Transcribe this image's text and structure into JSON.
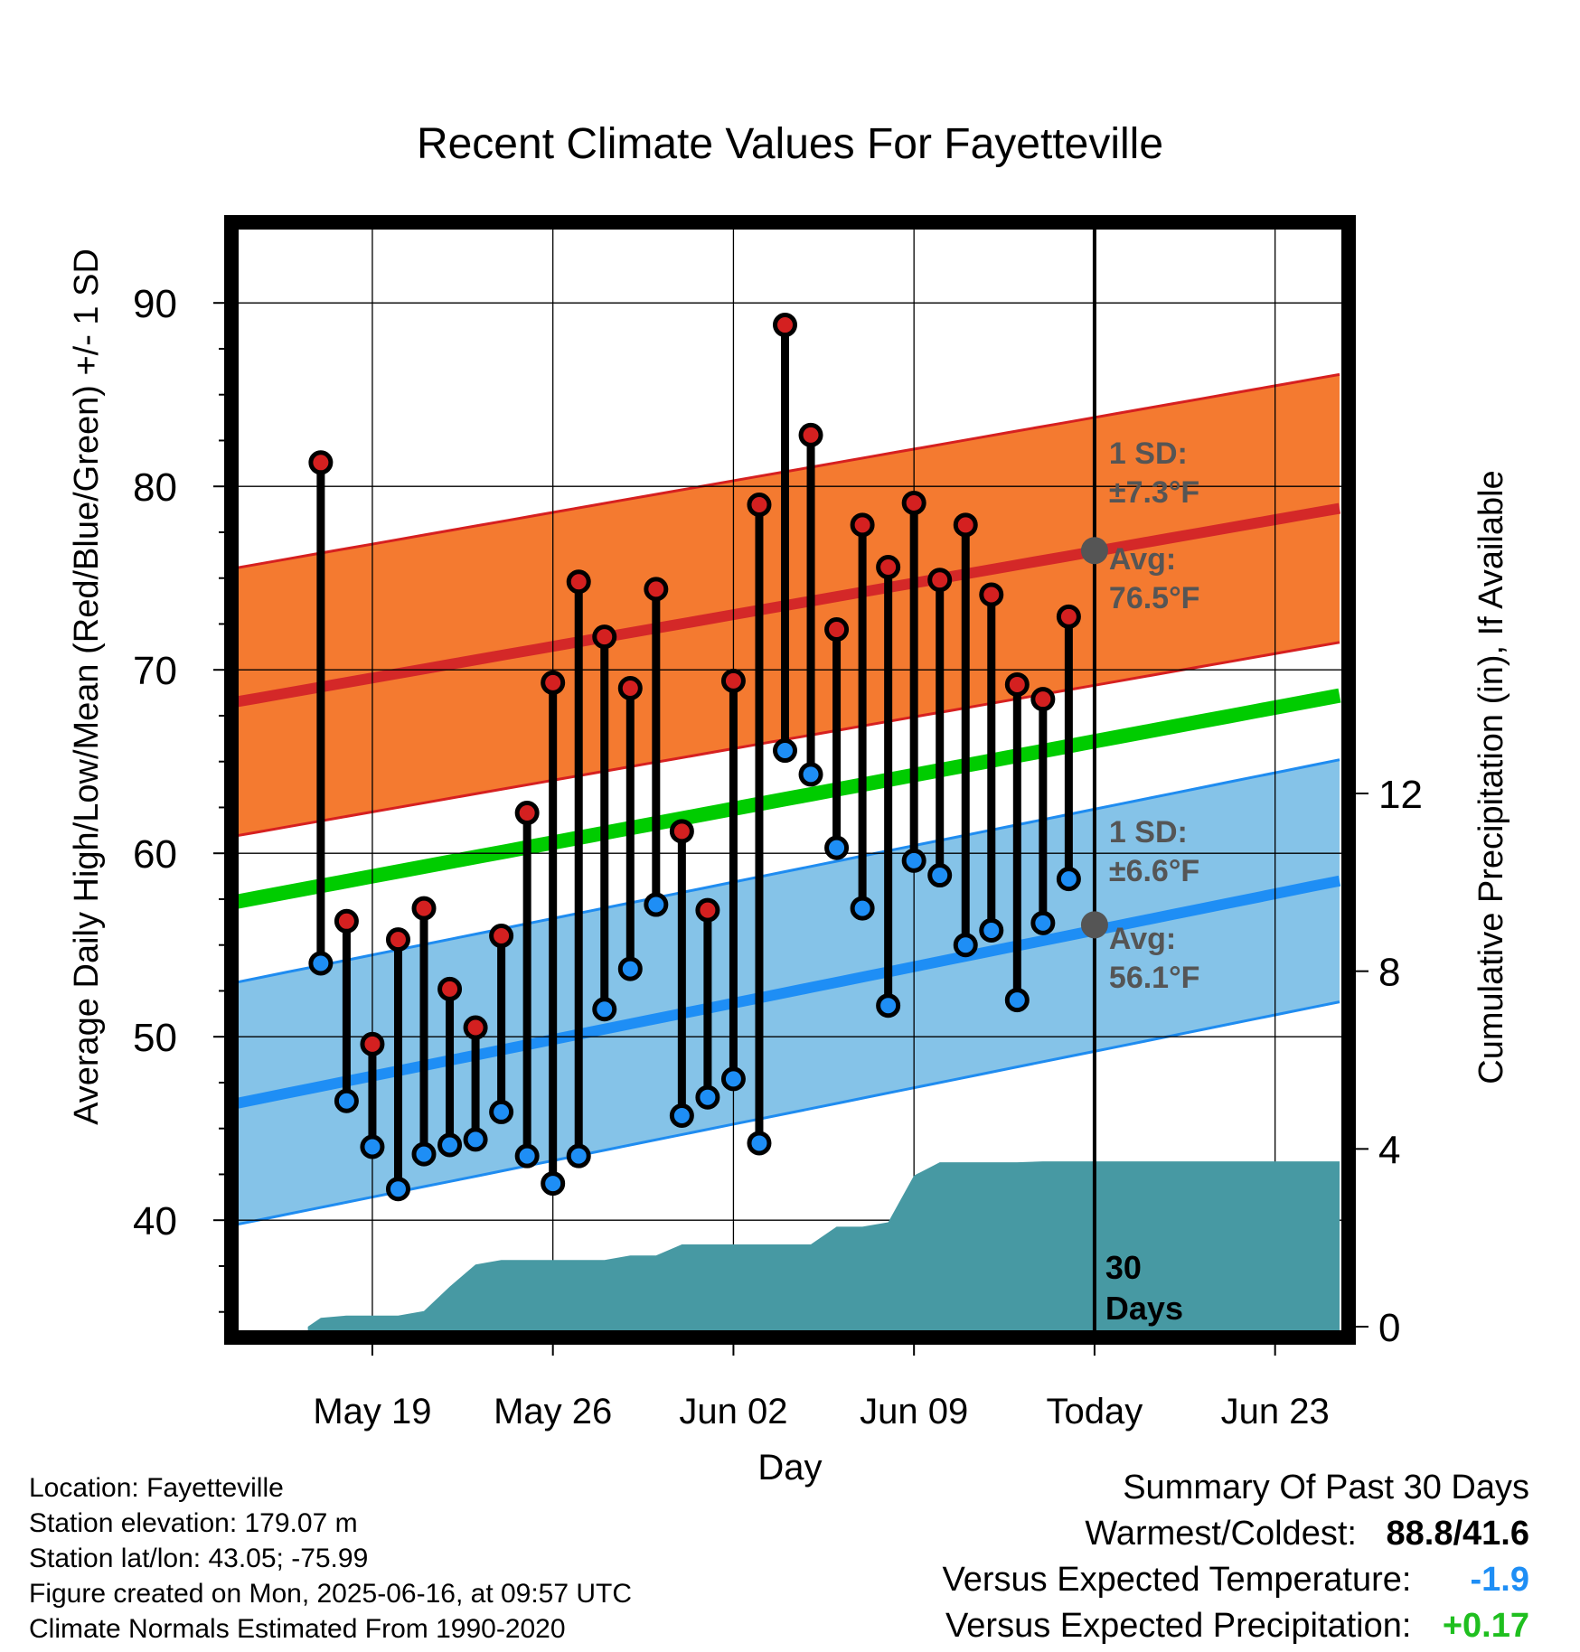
{
  "chart_data": {
    "type": "line",
    "title": "Recent Climate Values For Fayetteville",
    "xlabel": "Day",
    "ylabel": "Average Daily High/Low/Mean (Red/Blue/Green) +/- 1 SD",
    "y2label": "Cumulative Precipitation (in), If Available",
    "ylim": [
      34,
      94
    ],
    "y2lim": [
      0,
      12
    ],
    "x_range_days": [
      -33.5,
      9.5
    ],
    "x_ticks": [
      {
        "day": -28,
        "label": "May 19"
      },
      {
        "day": -21,
        "label": "May 26"
      },
      {
        "day": -14,
        "label": "Jun 02"
      },
      {
        "day": -7,
        "label": "Jun 09"
      },
      {
        "day": 0,
        "label": "Today"
      },
      {
        "day": 7,
        "label": "Jun 23"
      }
    ],
    "y_ticks": [
      40,
      50,
      60,
      70,
      80,
      90
    ],
    "y2_ticks": [
      0,
      4,
      8,
      12
    ],
    "grid": true,
    "today_marker": {
      "day": 0,
      "label_line1": "30",
      "label_line2": "Days"
    },
    "normals": {
      "high_avg": {
        "start": 68.2,
        "end": 78.8
      },
      "high_sd": 7.3,
      "low_avg": {
        "start": 46.3,
        "end": 58.5
      },
      "low_sd": 6.6,
      "mean_avg": {
        "start": 57.3,
        "end": 68.6
      }
    },
    "annotations": {
      "high_sd": {
        "line1": "1 SD:",
        "line2": "±7.3°F"
      },
      "high_avg": {
        "line1": "Avg:",
        "line2": "76.5°F",
        "value": 76.5
      },
      "low_sd": {
        "line1": "1 SD:",
        "line2": "±6.6°F"
      },
      "low_avg": {
        "line1": "Avg:",
        "line2": "56.1°F",
        "value": 56.1
      }
    },
    "daily": [
      {
        "day": -30,
        "high": 81.3,
        "low": 54.0
      },
      {
        "day": -29,
        "high": 56.3,
        "low": 46.5
      },
      {
        "day": -28,
        "high": 49.6,
        "low": 44.0
      },
      {
        "day": -27,
        "high": 55.3,
        "low": 41.7
      },
      {
        "day": -26,
        "high": 57.0,
        "low": 43.6
      },
      {
        "day": -25,
        "high": 52.6,
        "low": 44.1
      },
      {
        "day": -24,
        "high": 50.5,
        "low": 44.4
      },
      {
        "day": -23,
        "high": 55.5,
        "low": 45.9
      },
      {
        "day": -22,
        "high": 62.2,
        "low": 43.5
      },
      {
        "day": -21,
        "high": 69.3,
        "low": 42.0
      },
      {
        "day": -20,
        "high": 74.8,
        "low": 43.5
      },
      {
        "day": -19,
        "high": 71.8,
        "low": 51.5
      },
      {
        "day": -18,
        "high": 69.0,
        "low": 53.7
      },
      {
        "day": -17,
        "high": 74.4,
        "low": 57.2
      },
      {
        "day": -16,
        "high": 61.2,
        "low": 45.7
      },
      {
        "day": -15,
        "high": 56.9,
        "low": 46.7
      },
      {
        "day": -14,
        "high": 69.4,
        "low": 47.7
      },
      {
        "day": -13,
        "high": 79.0,
        "low": 44.2
      },
      {
        "day": -12,
        "high": 88.8,
        "low": 65.6
      },
      {
        "day": -11,
        "high": 82.8,
        "low": 64.3
      },
      {
        "day": -10,
        "high": 72.2,
        "low": 60.3
      },
      {
        "day": -9,
        "high": 77.9,
        "low": 57.0
      },
      {
        "day": -8,
        "high": 75.6,
        "low": 51.7
      },
      {
        "day": -7,
        "high": 79.1,
        "low": 59.6
      },
      {
        "day": -6,
        "high": 74.9,
        "low": 58.8
      },
      {
        "day": -5,
        "high": 77.9,
        "low": 55.0
      },
      {
        "day": -4,
        "high": 74.1,
        "low": 55.8
      },
      {
        "day": -3,
        "high": 69.2,
        "low": 52.0
      },
      {
        "day": -2,
        "high": 68.4,
        "low": 56.2
      },
      {
        "day": -1,
        "high": 72.9,
        "low": 58.6
      }
    ],
    "precip_cumulative": [
      {
        "day": -30.5,
        "value": 0.0
      },
      {
        "day": -30,
        "value": 0.2
      },
      {
        "day": -29,
        "value": 0.25
      },
      {
        "day": -28,
        "value": 0.25
      },
      {
        "day": -27,
        "value": 0.25
      },
      {
        "day": -26,
        "value": 0.35
      },
      {
        "day": -25,
        "value": 0.9
      },
      {
        "day": -24,
        "value": 1.4
      },
      {
        "day": -23,
        "value": 1.5
      },
      {
        "day": -22,
        "value": 1.5
      },
      {
        "day": -21,
        "value": 1.5
      },
      {
        "day": -20,
        "value": 1.5
      },
      {
        "day": -19,
        "value": 1.5
      },
      {
        "day": -18,
        "value": 1.6
      },
      {
        "day": -17,
        "value": 1.6
      },
      {
        "day": -16,
        "value": 1.85
      },
      {
        "day": -15,
        "value": 1.85
      },
      {
        "day": -14,
        "value": 1.85
      },
      {
        "day": -13,
        "value": 1.85
      },
      {
        "day": -12,
        "value": 1.85
      },
      {
        "day": -11,
        "value": 1.85
      },
      {
        "day": -10,
        "value": 2.25
      },
      {
        "day": -9,
        "value": 2.25
      },
      {
        "day": -8,
        "value": 2.35
      },
      {
        "day": -7,
        "value": 3.4
      },
      {
        "day": -6,
        "value": 3.7
      },
      {
        "day": -5,
        "value": 3.7
      },
      {
        "day": -4,
        "value": 3.7
      },
      {
        "day": -3,
        "value": 3.7
      },
      {
        "day": -2,
        "value": 3.72
      },
      {
        "day": -1,
        "value": 3.72
      },
      {
        "day": 0,
        "value": 3.72
      },
      {
        "day": 9.5,
        "value": 3.72
      }
    ],
    "colors": {
      "high_band": "#f47a30",
      "high_band_edge": "#d62020",
      "high_line": "#d42828",
      "low_band": "#85c3e8",
      "low_band_edge": "#1f8cf0",
      "low_line": "#1e8ef5",
      "mean_line": "#00cc00",
      "precip": "#4799a3",
      "high_marker": "#d42020",
      "low_marker": "#1e8ef5",
      "avg_marker": "#555555",
      "annotation_text": "#555555"
    }
  },
  "info": {
    "location": "Location: Fayetteville",
    "elevation": "Station elevation: 179.07 m",
    "latlon": "Station lat/lon: 43.05; -75.99",
    "created": "Figure created on Mon, 2025-06-16, at 09:57 UTC",
    "normals": "Climate Normals Estimated From 1990-2020"
  },
  "summary": {
    "title": "Summary Of Past 30 Days",
    "warm_cold_label": "Warmest/Coldest:",
    "warm_cold_value": "88.8/41.6",
    "temp_label": "Versus Expected Temperature:",
    "temp_value": "-1.9",
    "temp_color": "#1e8ef5",
    "precip_label": "Versus Expected Precipitation:",
    "precip_value": "+0.17",
    "precip_color": "#1fbf1f"
  }
}
